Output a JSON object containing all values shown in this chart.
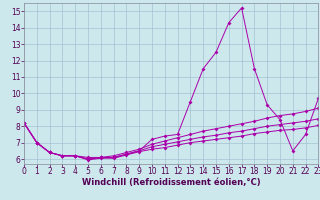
{
  "xlabel": "Windchill (Refroidissement éolien,°C)",
  "background_color": "#cce8ec",
  "line_color": "#aa00aa",
  "grid_color": "#99bbcc",
  "x_data": [
    0,
    1,
    2,
    3,
    4,
    5,
    6,
    7,
    8,
    9,
    10,
    11,
    12,
    13,
    14,
    15,
    16,
    17,
    18,
    19,
    20,
    21,
    22,
    23
  ],
  "series": [
    [
      8.2,
      7.0,
      6.4,
      6.2,
      6.2,
      6.0,
      6.1,
      6.1,
      6.3,
      6.5,
      7.2,
      7.4,
      7.5,
      9.5,
      11.5,
      12.5,
      14.3,
      15.2,
      11.5,
      9.3,
      8.4,
      6.5,
      7.5,
      9.7
    ],
    [
      8.2,
      7.0,
      6.4,
      6.2,
      6.2,
      6.1,
      6.1,
      6.2,
      6.4,
      6.6,
      6.9,
      7.1,
      7.3,
      7.5,
      7.7,
      7.85,
      8.0,
      8.15,
      8.3,
      8.5,
      8.65,
      8.75,
      8.9,
      9.1
    ],
    [
      8.2,
      7.0,
      6.4,
      6.2,
      6.2,
      6.0,
      6.1,
      6.1,
      6.3,
      6.5,
      6.75,
      6.9,
      7.05,
      7.2,
      7.35,
      7.45,
      7.6,
      7.7,
      7.85,
      8.0,
      8.1,
      8.2,
      8.3,
      8.45
    ],
    [
      8.2,
      7.0,
      6.4,
      6.2,
      6.2,
      5.95,
      6.05,
      6.05,
      6.25,
      6.45,
      6.6,
      6.7,
      6.85,
      7.0,
      7.1,
      7.2,
      7.3,
      7.4,
      7.55,
      7.65,
      7.75,
      7.8,
      7.9,
      8.05
    ]
  ],
  "xlim": [
    0,
    23
  ],
  "ylim": [
    5.7,
    15.5
  ],
  "yticks": [
    6,
    7,
    8,
    9,
    10,
    11,
    12,
    13,
    14,
    15
  ],
  "xticks": [
    0,
    1,
    2,
    3,
    4,
    5,
    6,
    7,
    8,
    9,
    10,
    11,
    12,
    13,
    14,
    15,
    16,
    17,
    18,
    19,
    20,
    21,
    22,
    23
  ],
  "tick_fontsize": 5.5,
  "xlabel_fontsize": 6.0,
  "spine_color": "#888899"
}
